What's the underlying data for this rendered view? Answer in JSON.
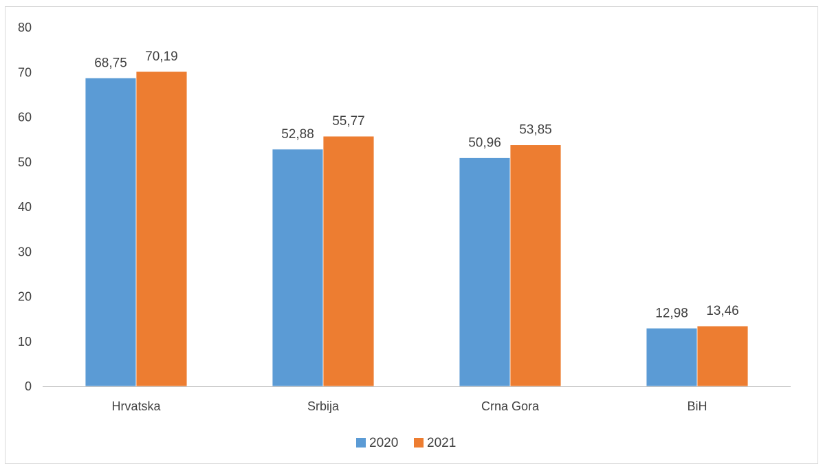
{
  "chart_data": {
    "type": "bar",
    "categories": [
      "Hrvatska",
      "Srbija",
      "Crna Gora",
      "BiH"
    ],
    "series": [
      {
        "name": "2020",
        "values": [
          68.75,
          52.88,
          50.96,
          12.98
        ],
        "labels": [
          "68,75",
          "52,88",
          "50,96",
          "12,98"
        ],
        "color": "#5B9BD5"
      },
      {
        "name": "2021",
        "values": [
          70.19,
          55.77,
          53.85,
          13.46
        ],
        "labels": [
          "70,19",
          "55,77",
          "53,85",
          "13,46"
        ],
        "color": "#ED7D31"
      }
    ],
    "ylim": [
      0,
      80
    ],
    "yticks": [
      0,
      10,
      20,
      30,
      40,
      50,
      60,
      70,
      80
    ],
    "grid": false,
    "legend": "bottom-center"
  }
}
